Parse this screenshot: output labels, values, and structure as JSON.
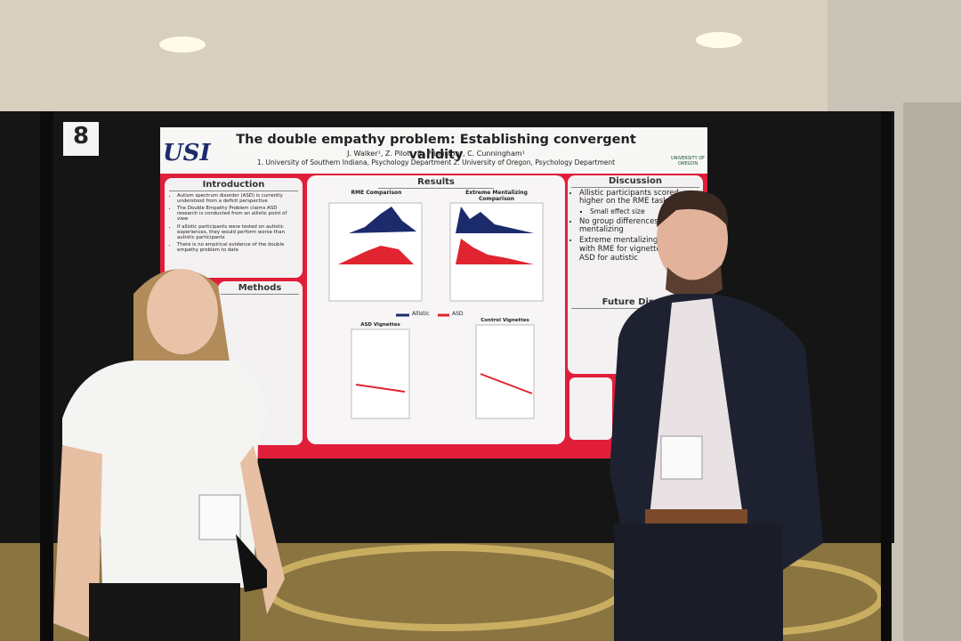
{
  "booth_number": "8",
  "poster": {
    "logo": "USI",
    "title": "The double empathy problem: Establishing convergent validity",
    "authors": "J. Walker¹, Z. Pilot¹, B. Pfingston¹, C. Cunningham¹",
    "affiliations": "1. University of Southern Indiana, Psychology Department 2. University of Oregon, Psychology Department",
    "partner_logo": "UNIVERSITY OF OREGON",
    "introduction": {
      "heading": "Introduction",
      "bullets": [
        "Autism spectrum disorder (ASD) is currently understood from a deficit perspective",
        "The Double Empathy Problem claims ASD research is conducted from an allistic point of view",
        "If allistic participants were tested on autistic experiences, they would perform worse than autistic participants",
        "There is no empirical evidence of the double empathy problem to date"
      ]
    },
    "methods": {
      "heading": "Methods"
    },
    "results": {
      "heading": "Results",
      "panels": [
        "RME Comparison",
        "Extreme Mentalizing Comparison",
        "ASD Vignettes",
        "Control Vignettes"
      ],
      "legend": [
        "Allistic",
        "ASD"
      ]
    },
    "discussion": {
      "heading": "Discussion",
      "bullets": [
        "Allistic participants scored higher on the RME task",
        "No group differences in mentalizing",
        "Extreme mentalizing correlated with RME for vignettes, but not ASD for autistic"
      ],
      "sub_bullet": "Small effect size"
    },
    "future": {
      "heading": "Future Direct"
    }
  }
}
